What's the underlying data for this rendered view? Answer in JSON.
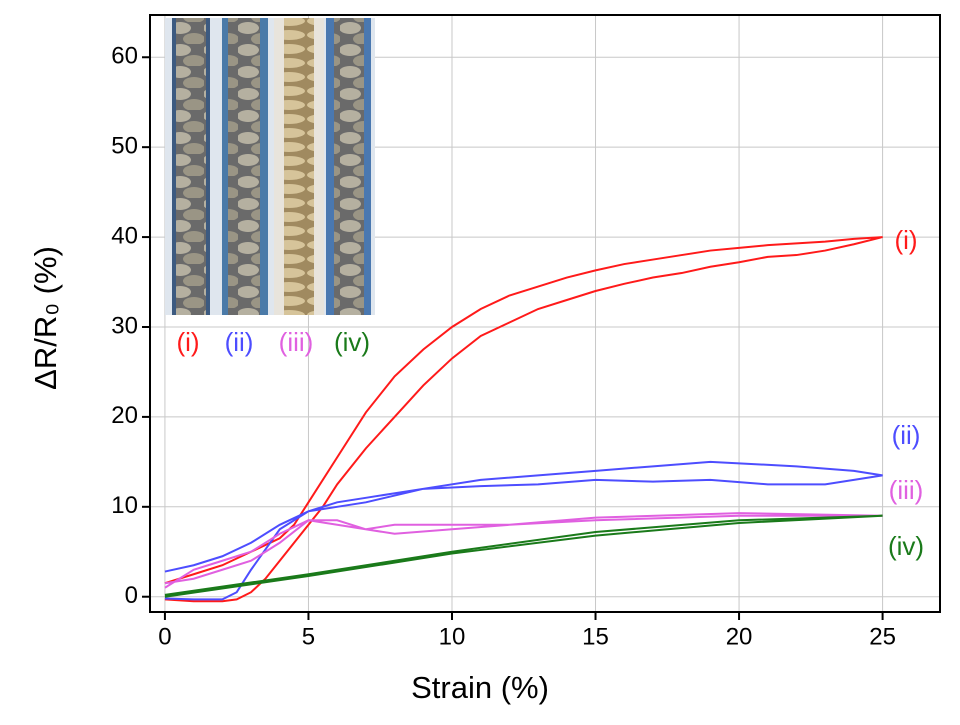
{
  "chart_data": {
    "type": "line",
    "xlabel": "Strain (%)",
    "ylabel": "ΔR/R₀ (%)",
    "xlim": [
      -0.52,
      27.0
    ],
    "ylim": [
      -1.7,
      64.7
    ],
    "xticks": [
      0,
      5,
      10,
      15,
      20,
      25
    ],
    "yticks": [
      0,
      10,
      20,
      30,
      40,
      50,
      60
    ],
    "grid": true,
    "series": [
      {
        "name": "(i)",
        "color": "#ff1a1a",
        "x": [
          0,
          1,
          2,
          2.5,
          3,
          3.5,
          4,
          4.5,
          5,
          5.5,
          6,
          7,
          8,
          9,
          10,
          11,
          12,
          13,
          14,
          15,
          16,
          17,
          18,
          19,
          20,
          21,
          22,
          23,
          24,
          25,
          24,
          23,
          22,
          21,
          20,
          19,
          18,
          17,
          16,
          15,
          14,
          13,
          12,
          11,
          10,
          9,
          8,
          7,
          6,
          5,
          4.5,
          4,
          3,
          2,
          1,
          0
        ],
        "values": [
          -0.3,
          -0.5,
          -0.5,
          -0.3,
          0.5,
          2,
          4,
          6,
          8,
          10,
          12.5,
          16.5,
          20,
          23.5,
          26.5,
          29,
          30.5,
          32,
          33,
          34,
          34.8,
          35.5,
          36,
          36.7,
          37.2,
          37.8,
          38,
          38.5,
          39.2,
          40,
          39.8,
          39.5,
          39.3,
          39.1,
          38.8,
          38.5,
          38,
          37.5,
          37,
          36.3,
          35.5,
          34.5,
          33.5,
          32,
          30,
          27.5,
          24.5,
          20.5,
          15.5,
          10.5,
          8,
          6.5,
          5,
          3.5,
          2.5,
          1.5
        ]
      },
      {
        "name": "(ii)",
        "color": "#4d4dff",
        "x": [
          0,
          1,
          2,
          3,
          4,
          5,
          6,
          7,
          9,
          11,
          13,
          15,
          17,
          19,
          22,
          24,
          25,
          23,
          21,
          19,
          17,
          15,
          13,
          11,
          9,
          7,
          6,
          5,
          4,
          3,
          2.5,
          2,
          1,
          0
        ],
        "values": [
          2.8,
          3.5,
          4.5,
          6,
          8,
          9.5,
          10.5,
          11,
          12,
          13,
          13.5,
          14,
          14.5,
          15,
          14.5,
          14,
          13.5,
          12.5,
          12.5,
          13,
          12.8,
          13,
          12.5,
          12.3,
          12,
          10.5,
          10,
          9.5,
          7.5,
          3,
          0.5,
          -0.3,
          -0.3,
          -0.2
        ]
      },
      {
        "name": "(iii)",
        "color": "#e060e0",
        "x": [
          0,
          1,
          2,
          3,
          4,
          5,
          6,
          7,
          8,
          10,
          12,
          15,
          20,
          25,
          20,
          15,
          12,
          10,
          8,
          6,
          5,
          4,
          3,
          2,
          1,
          0
        ],
        "values": [
          1,
          3,
          4,
          5,
          7,
          8.5,
          8.5,
          7.5,
          8,
          8,
          8,
          8.5,
          9,
          9,
          9.3,
          8.8,
          8,
          7.5,
          7,
          8,
          8.5,
          6,
          4,
          3,
          2,
          1.5
        ]
      },
      {
        "name": "(iv)",
        "color": "#1a7a1a",
        "x": [
          0,
          5,
          10,
          15,
          20,
          25,
          20,
          15,
          10,
          5,
          0
        ],
        "values": [
          0,
          2.3,
          4.8,
          6.8,
          8.2,
          9,
          8.5,
          7.2,
          5,
          2.5,
          0.2
        ]
      }
    ]
  }
}
